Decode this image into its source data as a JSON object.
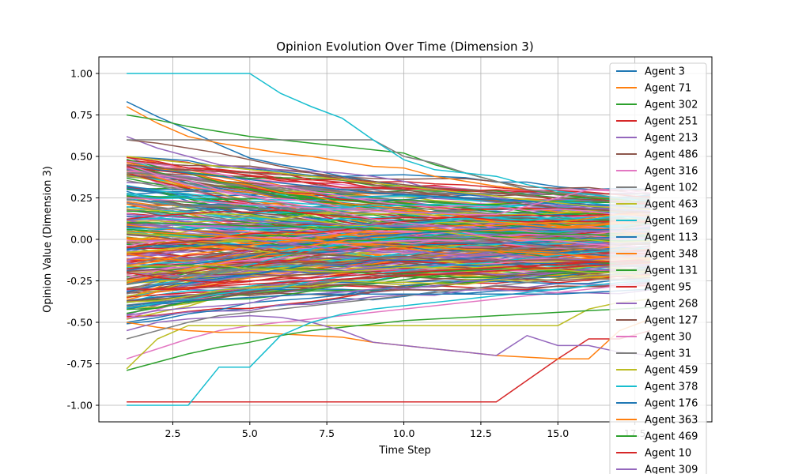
{
  "chart_data": {
    "type": "line",
    "title": "Opinion Evolution Over Time (Dimension 3)",
    "xlabel": "Time Step",
    "ylabel": "Opinion Value (Dimension 3)",
    "xlim": [
      0.1,
      20
    ],
    "ylim": [
      -1.1,
      1.1
    ],
    "xticks": [
      2.5,
      5.0,
      7.5,
      10.0,
      12.5,
      15.0,
      17.5
    ],
    "yticks": [
      -1.0,
      -0.75,
      -0.5,
      -0.25,
      0.0,
      0.25,
      0.5,
      0.75,
      1.0
    ],
    "grid": true,
    "legend_position": "upper right",
    "x": [
      1,
      2,
      3,
      4,
      5,
      6,
      7,
      8,
      9,
      10,
      11,
      12,
      13,
      14,
      15,
      16,
      17,
      18
    ],
    "series": [
      {
        "name": "Agent 3",
        "color": "#1f77b4",
        "values": [
          0.83,
          0.74,
          0.66,
          0.57,
          0.49,
          0.45,
          0.42,
          0.38,
          0.35,
          0.32,
          0.3,
          0.27,
          0.25,
          0.23,
          0.21,
          0.2,
          0.18,
          0.17
        ]
      },
      {
        "name": "Agent 71",
        "color": "#ff7f0e",
        "values": [
          0.8,
          0.7,
          0.62,
          0.58,
          0.55,
          0.52,
          0.5,
          0.47,
          0.44,
          0.43,
          0.38,
          0.35,
          0.32,
          0.3,
          0.28,
          0.26,
          0.24,
          0.22
        ]
      },
      {
        "name": "Agent 302",
        "color": "#2ca02c",
        "values": [
          0.75,
          0.72,
          0.68,
          0.65,
          0.62,
          0.6,
          0.58,
          0.56,
          0.54,
          0.52,
          0.45,
          0.4,
          0.35,
          0.3,
          0.27,
          0.25,
          0.24,
          0.22
        ]
      },
      {
        "name": "Agent 251",
        "color": "#d62728",
        "values": [
          -0.98,
          -0.98,
          -0.98,
          -0.98,
          -0.98,
          -0.98,
          -0.98,
          -0.98,
          -0.98,
          -0.98,
          -0.98,
          -0.98,
          -0.98,
          -0.85,
          -0.72,
          -0.6,
          -0.6,
          -0.55
        ]
      },
      {
        "name": "Agent 213",
        "color": "#9467bd",
        "values": [
          0.62,
          0.55,
          0.5,
          0.45,
          0.43,
          0.42,
          0.41,
          0.4,
          0.38,
          0.35,
          0.3,
          0.28,
          0.25,
          0.22,
          0.2,
          0.19,
          0.18,
          0.17
        ]
      },
      {
        "name": "Agent 486",
        "color": "#8c564b",
        "values": [
          0.6,
          0.58,
          0.55,
          0.52,
          0.48,
          0.44,
          0.4,
          0.36,
          0.33,
          0.3,
          0.27,
          0.25,
          0.23,
          0.21,
          0.19,
          0.18,
          0.17,
          0.16
        ]
      },
      {
        "name": "Agent 316",
        "color": "#e377c2",
        "values": [
          -0.72,
          -0.66,
          -0.6,
          -0.55,
          -0.52,
          -0.5,
          -0.48,
          -0.46,
          -0.44,
          -0.42,
          -0.4,
          -0.38,
          -0.36,
          -0.34,
          -0.32,
          -0.3,
          -0.28,
          -0.27
        ]
      },
      {
        "name": "Agent 102",
        "color": "#7f7f7f",
        "values": [
          0.6,
          0.6,
          0.6,
          0.6,
          0.6,
          0.6,
          0.6,
          0.6,
          0.6,
          0.5,
          0.46,
          0.4,
          0.35,
          0.3,
          0.28,
          0.26,
          0.25,
          0.24
        ]
      },
      {
        "name": "Agent 463",
        "color": "#bcbd22",
        "values": [
          -0.78,
          -0.6,
          -0.52,
          -0.52,
          -0.52,
          -0.52,
          -0.52,
          -0.52,
          -0.52,
          -0.52,
          -0.52,
          -0.52,
          -0.52,
          -0.52,
          -0.52,
          -0.42,
          -0.38,
          -0.36
        ]
      },
      {
        "name": "Agent 169",
        "color": "#17becf",
        "values": [
          1.0,
          1.0,
          1.0,
          1.0,
          1.0,
          0.88,
          0.8,
          0.73,
          0.6,
          0.48,
          0.42,
          0.4,
          0.38,
          0.33,
          0.29,
          0.27,
          0.25,
          0.23
        ]
      },
      {
        "name": "Agent 113",
        "color": "#1f77b4",
        "values": [
          0.45,
          0.42,
          0.4,
          0.38,
          0.36,
          0.34,
          0.32,
          0.3,
          0.28,
          0.27,
          0.26,
          0.25,
          0.24,
          0.23,
          0.22,
          0.21,
          0.2,
          0.19
        ]
      },
      {
        "name": "Agent 348",
        "color": "#ff7f0e",
        "values": [
          -0.5,
          -0.53,
          -0.55,
          -0.56,
          -0.56,
          -0.57,
          -0.58,
          -0.59,
          -0.62,
          -0.64,
          -0.66,
          -0.68,
          -0.7,
          -0.71,
          -0.72,
          -0.72,
          -0.55,
          -0.48
        ]
      },
      {
        "name": "Agent 131",
        "color": "#2ca02c",
        "values": [
          -0.79,
          -0.74,
          -0.69,
          -0.65,
          -0.62,
          -0.58,
          -0.55,
          -0.53,
          -0.51,
          -0.49,
          -0.48,
          -0.47,
          -0.46,
          -0.45,
          -0.44,
          -0.43,
          -0.42,
          -0.41
        ]
      },
      {
        "name": "Agent 95",
        "color": "#d62728",
        "values": [
          -0.2,
          -0.23,
          -0.25,
          -0.26,
          -0.25,
          -0.24,
          -0.23,
          -0.22,
          -0.21,
          -0.2,
          -0.19,
          -0.18,
          -0.17,
          -0.16,
          -0.15,
          -0.14,
          -0.13,
          -0.12
        ]
      },
      {
        "name": "Agent 268",
        "color": "#9467bd",
        "values": [
          -0.55,
          -0.5,
          -0.48,
          -0.47,
          -0.46,
          -0.47,
          -0.5,
          -0.55,
          -0.62,
          -0.64,
          -0.66,
          -0.68,
          -0.7,
          -0.58,
          -0.64,
          -0.64,
          -0.68,
          -0.7
        ]
      },
      {
        "name": "Agent 127",
        "color": "#8c564b",
        "values": [
          0.45,
          0.43,
          0.42,
          0.41,
          0.4,
          0.39,
          0.38,
          0.37,
          0.35,
          0.33,
          0.31,
          0.3,
          0.28,
          0.26,
          0.25,
          0.24,
          0.23,
          0.22
        ]
      },
      {
        "name": "Agent 30",
        "color": "#e377c2",
        "values": [
          0.25,
          0.24,
          0.23,
          0.22,
          0.21,
          0.2,
          0.19,
          0.18,
          0.17,
          0.16,
          0.16,
          0.15,
          0.15,
          0.2,
          0.25,
          0.3,
          0.3,
          0.28
        ]
      },
      {
        "name": "Agent 31",
        "color": "#7f7f7f",
        "values": [
          -0.6,
          -0.55,
          -0.5,
          -0.46,
          -0.44,
          -0.42,
          -0.4,
          -0.38,
          -0.36,
          -0.34,
          -0.32,
          -0.3,
          -0.28,
          -0.26,
          -0.24,
          -0.22,
          -0.21,
          -0.2
        ]
      },
      {
        "name": "Agent 459",
        "color": "#bcbd22",
        "values": [
          0.5,
          0.48,
          0.46,
          0.44,
          0.42,
          0.4,
          0.38,
          0.36,
          0.34,
          0.32,
          0.3,
          0.28,
          0.26,
          0.24,
          0.22,
          0.2,
          0.19,
          0.18
        ]
      },
      {
        "name": "Agent 378",
        "color": "#17becf",
        "values": [
          -1.0,
          -1.0,
          -1.0,
          -0.77,
          -0.77,
          -0.58,
          -0.5,
          -0.45,
          -0.42,
          -0.4,
          -0.38,
          -0.36,
          -0.34,
          -0.32,
          -0.3,
          -0.28,
          -0.26,
          -0.25
        ]
      },
      {
        "name": "Agent 176",
        "color": "#1f77b4",
        "values": [
          -0.4,
          -0.38,
          -0.37,
          -0.36,
          -0.35,
          -0.34,
          -0.33,
          -0.33,
          -0.33,
          -0.33,
          -0.33,
          -0.33,
          -0.33,
          -0.33,
          -0.33,
          -0.32,
          -0.31,
          -0.3
        ]
      },
      {
        "name": "Agent 363",
        "color": "#ff7f0e",
        "values": [
          0.05,
          0.04,
          0.03,
          0.02,
          0.01,
          0.0,
          -0.01,
          -0.02,
          -0.03,
          -0.04,
          -0.05,
          -0.06,
          -0.07,
          -0.08,
          -0.09,
          -0.1,
          -0.11,
          -0.12
        ]
      },
      {
        "name": "Agent 469",
        "color": "#2ca02c",
        "values": [
          0.1,
          0.1,
          0.09,
          0.09,
          0.08,
          0.08,
          0.07,
          0.07,
          0.06,
          0.06,
          0.05,
          0.05,
          0.04,
          0.04,
          0.03,
          0.03,
          0.02,
          0.02
        ]
      },
      {
        "name": "Agent 10",
        "color": "#d62728",
        "values": [
          -0.3,
          -0.3,
          -0.29,
          -0.28,
          -0.27,
          -0.26,
          -0.25,
          -0.24,
          -0.23,
          -0.22,
          -0.21,
          -0.2,
          -0.19,
          -0.18,
          -0.17,
          -0.16,
          -0.15,
          -0.14
        ]
      },
      {
        "name": "Agent 309",
        "color": "#9467bd",
        "values": [
          0.15,
          0.14,
          0.13,
          0.12,
          0.11,
          0.1,
          0.1,
          0.09,
          0.09,
          0.08,
          0.08,
          0.07,
          0.07,
          0.06,
          0.06,
          0.05,
          0.05,
          0.04
        ]
      }
    ]
  }
}
